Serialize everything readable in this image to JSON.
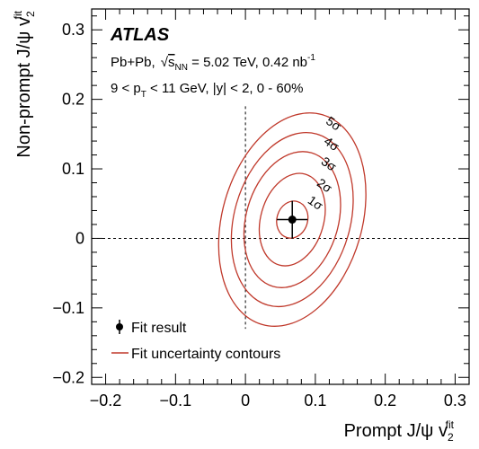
{
  "chart_data": {
    "type": "contour",
    "experiment": "ATLAS",
    "info_lines": [
      {
        "pre": "Pb+Pb, ",
        "sqrt_sub_main": "s",
        "sqrt_sub": "NN",
        "post": " = 5.02 TeV, 0.42 nb",
        "sup": "-1"
      },
      {
        "text": "9 < p",
        "sub": "T",
        "post": " < 11 GeV, |y| < 2, 0 - 60%"
      }
    ],
    "xlabel": {
      "main": "Prompt J/ψ v",
      "sub": "2",
      "sup": "fit"
    },
    "ylabel": {
      "main": "Non-prompt J/ψ v",
      "sub": "2",
      "sup": "fit"
    },
    "xlim": [
      -0.22,
      0.32
    ],
    "ylim": [
      -0.21,
      0.33
    ],
    "xticks": [
      -0.2,
      -0.1,
      0,
      0.1,
      0.2,
      0.3
    ],
    "xtick_labels": [
      "−0.2",
      "−0.1",
      "0",
      "0.1",
      "0.2",
      "0.3"
    ],
    "yticks": [
      -0.2,
      -0.1,
      0,
      0.1,
      0.2,
      0.3
    ],
    "ytick_labels": [
      "−0.2",
      "−0.1",
      "0",
      "0.1",
      "0.2",
      "0.3"
    ],
    "fit_result": {
      "x": 0.067,
      "y": 0.027,
      "xerr": 0.022,
      "yerr": 0.027
    },
    "contours": [
      {
        "label": "1σ",
        "ax": 0.022,
        "ay": 0.027,
        "theta_deg": 106,
        "label_x": 0.088,
        "label_y": 0.052
      },
      {
        "label": "2σ",
        "ax": 0.045,
        "ay": 0.068,
        "theta_deg": 106,
        "label_x": 0.101,
        "label_y": 0.077
      },
      {
        "label": "3σ",
        "ax": 0.066,
        "ay": 0.1,
        "theta_deg": 106,
        "label_x": 0.107,
        "label_y": 0.108
      },
      {
        "label": "4σ",
        "ax": 0.083,
        "ay": 0.128,
        "theta_deg": 106,
        "label_x": 0.111,
        "label_y": 0.137
      },
      {
        "label": "5σ",
        "ax": 0.1,
        "ay": 0.157,
        "theta_deg": 106,
        "label_x": 0.114,
        "label_y": 0.166
      }
    ],
    "reference_lines": {
      "x": 0,
      "y": 0,
      "style": "dashed"
    },
    "legend": {
      "position": "bottom-left",
      "entries": [
        {
          "label": "Fit result",
          "marker": "point-with-errorbar"
        },
        {
          "label": "Fit uncertainty contours",
          "marker": "line"
        }
      ]
    },
    "colors": {
      "contour": "#c0392b",
      "marker": "#000000",
      "axis": "#000000"
    }
  }
}
